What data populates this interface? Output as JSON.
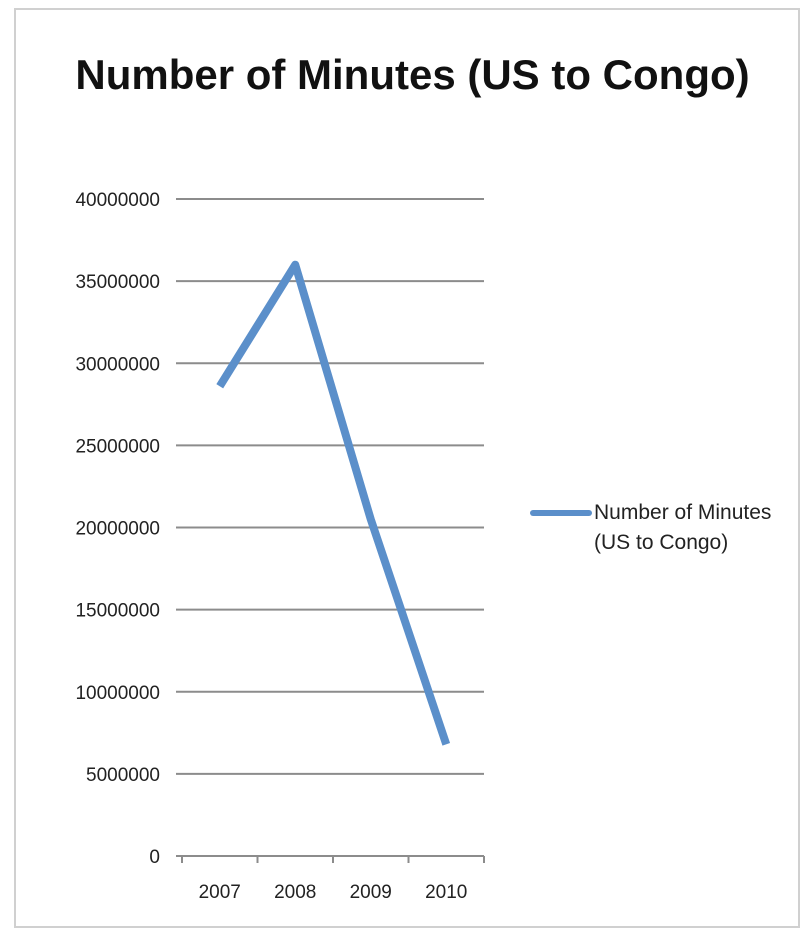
{
  "chart_data": {
    "type": "line",
    "title": "Number of Minutes (US to Congo)",
    "xlabel": "",
    "ylabel": "",
    "categories": [
      "2007",
      "2008",
      "2009",
      "2010"
    ],
    "series": [
      {
        "name": "Number of Minutes (US to Congo)",
        "values": [
          28600000,
          36000000,
          20500000,
          6800000
        ],
        "color": "#5b8fca"
      }
    ],
    "ylim": [
      0,
      40000000
    ],
    "yticks": [
      "0",
      "5000000",
      "10000000",
      "15000000",
      "20000000",
      "25000000",
      "30000000",
      "35000000",
      "40000000"
    ],
    "grid": true,
    "legend_position": "right"
  }
}
